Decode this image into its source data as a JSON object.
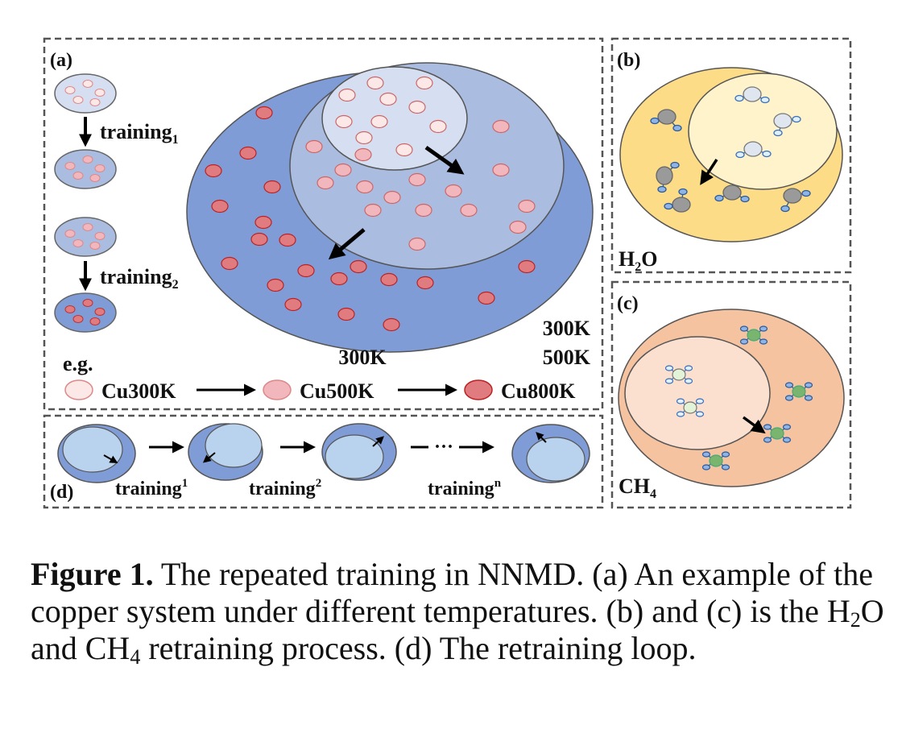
{
  "panels": {
    "a": {
      "label": "(a)",
      "step1": {
        "main": "training",
        "sub": "1"
      },
      "step2": {
        "main": "training",
        "sub": "2"
      },
      "temps": {
        "t1": "300K",
        "t2": "300K",
        "t3": "500K"
      },
      "example": {
        "eg": "e.g.",
        "items": [
          "Cu300K",
          "Cu500K",
          "Cu800K"
        ],
        "colors": [
          "#fde8e8",
          "#f2b6bd",
          "#e07b7f"
        ]
      }
    },
    "b": {
      "label": "(b)",
      "molecule": {
        "main": "H",
        "sub": "2",
        "tail": "O"
      }
    },
    "c": {
      "label": "(c)",
      "molecule": {
        "main": "CH",
        "sub": "4"
      }
    },
    "d": {
      "label": "(d)",
      "steps": [
        {
          "main": "training",
          "sup": "1"
        },
        {
          "main": "training",
          "sup": "2"
        },
        {
          "main": "training",
          "sup": "n"
        }
      ],
      "ellipsis": "···"
    }
  },
  "caption": {
    "figure_label": "Figure 1.",
    "text1": " The repeated training in NNMD. (a) An example of the copper system under different temperatures. (b) and (c) is the H",
    "sub1": "2",
    "text2": "O and CH",
    "sub2": "4",
    "text3": " retraining process. (d) The retraining loop."
  },
  "colors": {
    "outer_blue": "#7f9cd6",
    "mid_blue": "#aabce0",
    "inner_blue": "#d6def1",
    "yellow_outer": "#fddc87",
    "yellow_inner": "#fff3cc",
    "orange_outer": "#f6c3a1",
    "orange_inner": "#fbe0d0",
    "loop_inner": "#b9d2ee"
  }
}
